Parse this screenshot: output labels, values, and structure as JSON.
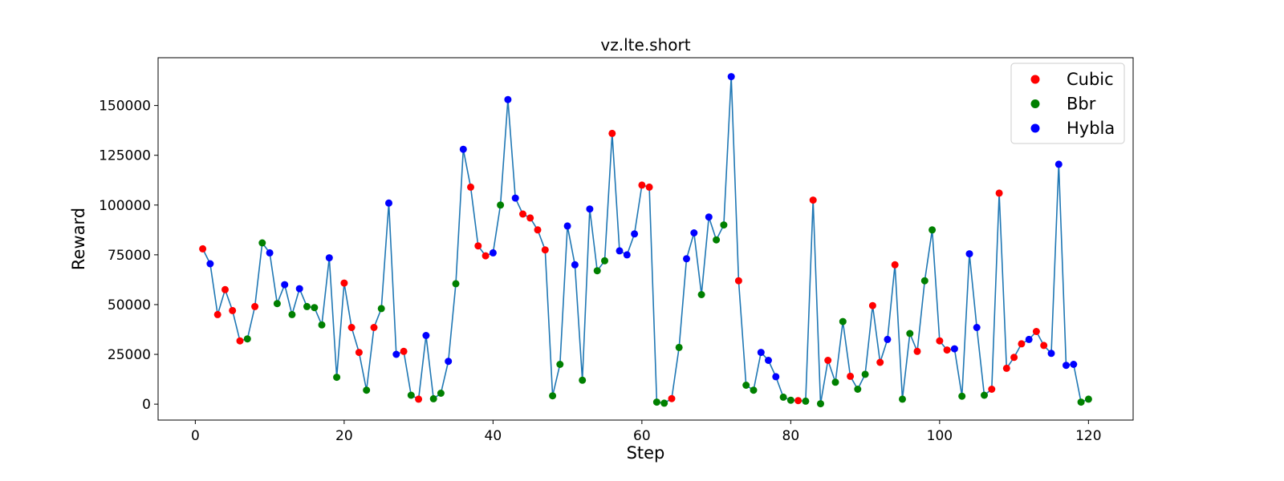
{
  "chart_data": {
    "type": "scatter",
    "title": "vz.lte.short",
    "xlabel": "Step",
    "ylabel": "Reward",
    "xlim": [
      -5,
      126
    ],
    "ylim": [
      -8000,
      174000
    ],
    "xticks": [
      0,
      20,
      40,
      60,
      80,
      100,
      120
    ],
    "yticks": [
      0,
      25000,
      50000,
      75000,
      100000,
      125000,
      150000
    ],
    "grid": false,
    "legend_position": "top-right",
    "line_color": "#1f77b4",
    "series": [
      {
        "name": "Cubic",
        "color": "#ff0000"
      },
      {
        "name": "Bbr",
        "color": "#008000"
      },
      {
        "name": "Hybla",
        "color": "#0000ff"
      }
    ],
    "x": [
      1,
      2,
      3,
      4,
      5,
      6,
      7,
      8,
      9,
      10,
      11,
      12,
      13,
      14,
      15,
      16,
      17,
      18,
      19,
      20,
      21,
      22,
      23,
      24,
      25,
      26,
      27,
      28,
      29,
      30,
      31,
      32,
      33,
      34,
      35,
      36,
      37,
      38,
      39,
      40,
      41,
      42,
      43,
      44,
      45,
      46,
      47,
      48,
      49,
      50,
      51,
      52,
      53,
      54,
      55,
      56,
      57,
      58,
      59,
      60,
      61,
      62,
      63,
      64,
      65,
      66,
      67,
      68,
      69,
      70,
      71,
      72,
      73,
      74,
      75,
      76,
      77,
      78,
      79,
      80,
      81,
      82,
      83,
      84,
      85,
      86,
      87,
      88,
      89,
      90,
      91,
      92,
      93,
      94,
      95,
      96,
      97,
      98,
      99,
      100,
      101,
      102,
      103,
      104,
      105,
      106,
      107,
      108,
      109,
      110,
      111,
      112,
      113,
      114,
      115,
      116,
      117,
      118,
      119,
      120
    ],
    "y": [
      78000,
      70500,
      45000,
      57500,
      47000,
      31800,
      32800,
      49000,
      81000,
      76000,
      50500,
      60000,
      45000,
      58000,
      49000,
      48500,
      39800,
      73500,
      13500,
      60800,
      38500,
      26000,
      7000,
      38500,
      48000,
      101000,
      25000,
      26500,
      4500,
      2500,
      34500,
      2700,
      5500,
      21500,
      60500,
      128000,
      109000,
      79500,
      74500,
      76000,
      100000,
      153000,
      103500,
      95500,
      93500,
      87500,
      77500,
      4200,
      20000,
      89500,
      70000,
      12000,
      98000,
      67000,
      72000,
      136000,
      77000,
      75000,
      85500,
      110000,
      109000,
      1000,
      500,
      2800,
      28500,
      73000,
      86000,
      55000,
      94000,
      82500,
      90000,
      164500,
      62000,
      9500,
      7000,
      26000,
      22000,
      13800,
      3500,
      2000,
      1800,
      1500,
      102500,
      200,
      22000,
      11000,
      41500,
      14000,
      7500,
      15000,
      49500,
      21000,
      32500,
      70000,
      2500,
      35500,
      26500,
      62000,
      87500,
      31800,
      27200,
      27800,
      4000,
      75500,
      38500,
      4500,
      7500,
      106000,
      18000,
      23500,
      30300,
      32500,
      36500,
      29500,
      25500,
      120500,
      19500,
      20000,
      1000,
      2500
    ],
    "labels": [
      "Cubic",
      "Hybla",
      "Cubic",
      "Cubic",
      "Cubic",
      "Cubic",
      "Bbr",
      "Cubic",
      "Bbr",
      "Hybla",
      "Bbr",
      "Hybla",
      "Bbr",
      "Hybla",
      "Bbr",
      "Bbr",
      "Bbr",
      "Hybla",
      "Bbr",
      "Cubic",
      "Cubic",
      "Cubic",
      "Bbr",
      "Cubic",
      "Bbr",
      "Hybla",
      "Hybla",
      "Cubic",
      "Bbr",
      "Cubic",
      "Hybla",
      "Bbr",
      "Bbr",
      "Hybla",
      "Bbr",
      "Hybla",
      "Cubic",
      "Cubic",
      "Cubic",
      "Hybla",
      "Bbr",
      "Hybla",
      "Hybla",
      "Cubic",
      "Cubic",
      "Cubic",
      "Cubic",
      "Bbr",
      "Bbr",
      "Hybla",
      "Hybla",
      "Bbr",
      "Hybla",
      "Bbr",
      "Bbr",
      "Cubic",
      "Hybla",
      "Hybla",
      "Hybla",
      "Cubic",
      "Cubic",
      "Bbr",
      "Bbr",
      "Cubic",
      "Bbr",
      "Hybla",
      "Hybla",
      "Bbr",
      "Hybla",
      "Bbr",
      "Bbr",
      "Hybla",
      "Cubic",
      "Bbr",
      "Bbr",
      "Hybla",
      "Hybla",
      "Hybla",
      "Bbr",
      "Bbr",
      "Cubic",
      "Bbr",
      "Cubic",
      "Bbr",
      "Cubic",
      "Bbr",
      "Bbr",
      "Cubic",
      "Bbr",
      "Bbr",
      "Cubic",
      "Cubic",
      "Hybla",
      "Cubic",
      "Bbr",
      "Bbr",
      "Cubic",
      "Bbr",
      "Bbr",
      "Cubic",
      "Cubic",
      "Hybla",
      "Bbr",
      "Hybla",
      "Hybla",
      "Bbr",
      "Cubic",
      "Cubic",
      "Cubic",
      "Cubic",
      "Cubic",
      "Hybla",
      "Cubic",
      "Cubic",
      "Hybla",
      "Hybla",
      "Hybla",
      "Hybla",
      "Bbr",
      "Bbr"
    ]
  }
}
